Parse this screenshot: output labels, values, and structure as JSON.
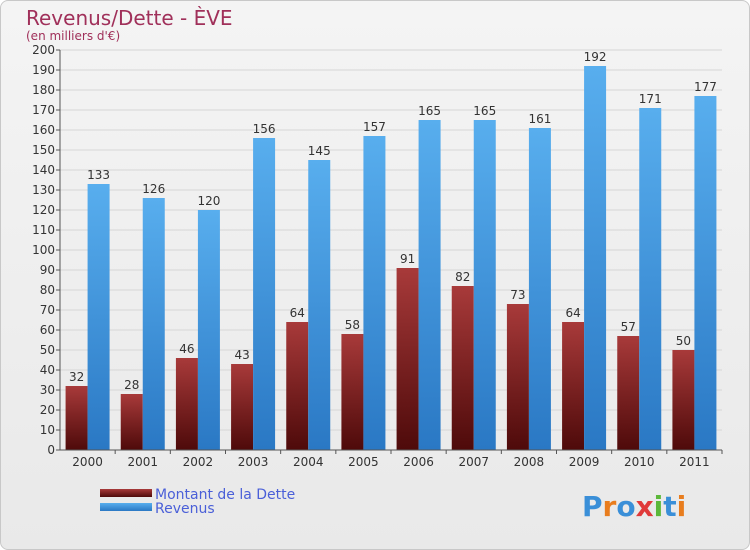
{
  "chart_data": {
    "type": "bar",
    "title": "Revenus/Dette - ÈVE",
    "subtitle": "(en milliers d'€)",
    "categories": [
      "2000",
      "2001",
      "2002",
      "2003",
      "2004",
      "2005",
      "2006",
      "2007",
      "2008",
      "2009",
      "2010",
      "2011"
    ],
    "series": [
      {
        "name": "Montant de la Dette",
        "color": "#7a1a1a",
        "values": [
          32,
          28,
          46,
          43,
          64,
          58,
          91,
          82,
          73,
          64,
          57,
          50
        ]
      },
      {
        "name": "Revenus",
        "color": "#4a9fe0",
        "values": [
          133,
          126,
          120,
          156,
          145,
          157,
          165,
          165,
          161,
          192,
          171,
          177
        ]
      }
    ],
    "ylim": [
      0,
      200
    ],
    "ytick_step": 10,
    "grid": true,
    "legend_position": "bottom-left"
  },
  "branding": {
    "logo_text": "Proxiti"
  }
}
